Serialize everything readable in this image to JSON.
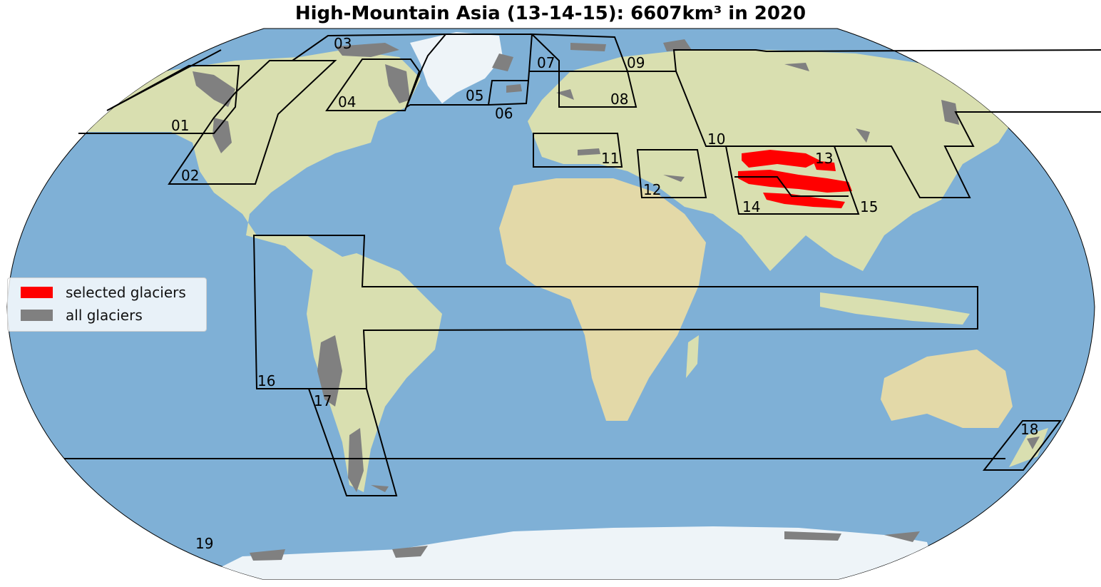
{
  "title": "High-Mountain Asia (13-14-15): 6607km³ in 2020",
  "colors": {
    "ocean": "#7fb0d6",
    "land": "#d9dfb0",
    "ice": "#eef4f8",
    "selected": "#ff0000",
    "all": "#808080",
    "border": "#000000"
  },
  "legend": {
    "selected_label": "selected glaciers",
    "all_label": "all glaciers"
  },
  "regions": {
    "r01": "01",
    "r02": "02",
    "r03": "03",
    "r04": "04",
    "r05": "05",
    "r06": "06",
    "r07": "07",
    "r08": "08",
    "r09": "09",
    "r10": "10",
    "r11": "11",
    "r12": "12",
    "r13": "13",
    "r14": "14",
    "r15": "15",
    "r16": "16",
    "r17": "17",
    "r18": "18",
    "r19": "19"
  }
}
